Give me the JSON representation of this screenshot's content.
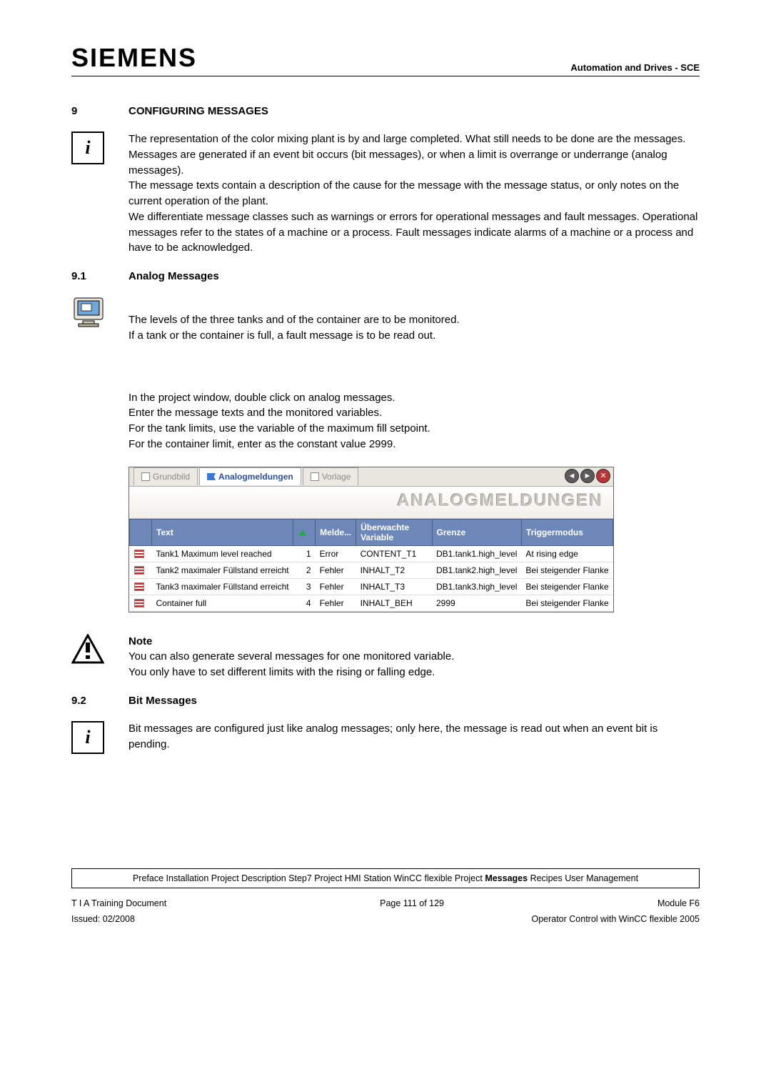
{
  "header": {
    "logo": "SIEMENS",
    "right": "Automation and Drives - SCE"
  },
  "sec9": {
    "num": "9",
    "title": "CONFIGURING MESSAGES",
    "para": "The representation of the color mixing plant is by and large completed. What still needs to be done are the messages. Messages are generated if an event bit occurs (bit messages), or when a limit is overrange or underrange (analog messages).\nThe message texts contain a description of the cause for the message with the message status, or only notes on the current operation of the plant.\nWe differentiate message classes such as warnings or errors for operational messages and  fault messages. Operational messages refer to the states of a machine or a process.  Fault messages indicate alarms of a machine or a process and have to be acknowledged."
  },
  "sec91": {
    "num": "9.1",
    "title": "Analog Messages",
    "para1": "The levels of the three tanks and of the container are to be monitored.\nIf a tank or the container is full, a fault message is to be read out.",
    "para2": "In the project window, double click on analog messages.\nEnter the message texts and the monitored variables.\nFor the tank limits, use the variable of the maximum fill setpoint.\nFor the container limit, enter as the constant value  2999."
  },
  "window": {
    "tabs": {
      "grundbild": "Grundbild",
      "analog": "Analogmeldungen",
      "vorlage": "Vorlage"
    },
    "banner": "ANALOGMELDUNGEN",
    "columns": {
      "text": "Text",
      "num": "",
      "melde": "Melde...",
      "var": "Überwachte Variable",
      "grenze": "Grenze",
      "trigger": "Triggermodus"
    },
    "rows": [
      {
        "text": "Tank1 Maximum level reached",
        "n": "1",
        "melde": "Error",
        "var": "CONTENT_T1",
        "grenze": "DB1.tank1.high_level",
        "trigger": "At rising edge"
      },
      {
        "text": "Tank2 maximaler Füllstand erreicht",
        "n": "2",
        "melde": "Fehler",
        "var": "INHALT_T2",
        "grenze": "DB1.tank2.high_level",
        "trigger": "Bei steigender Flanke"
      },
      {
        "text": "Tank3 maximaler Füllstand erreicht",
        "n": "3",
        "melde": "Fehler",
        "var": "INHALT_T3",
        "grenze": "DB1.tank3.high_level",
        "trigger": "Bei steigender Flanke"
      },
      {
        "text": "Container full",
        "n": "4",
        "melde": "Fehler",
        "var": "INHALT_BEH",
        "grenze": "2999",
        "trigger": "Bei steigender Flanke"
      }
    ]
  },
  "note": {
    "title": "Note",
    "body": "You can also generate several messages for one monitored variable.\nYou only have to set different limits with the rising or falling edge."
  },
  "sec92": {
    "num": "9.2",
    "title": "Bit Messages",
    "para": "Bit messages are configured just like analog messages; only here, the message is read out when an event bit is pending."
  },
  "breadcrumb": {
    "items": [
      "Preface",
      "Installation",
      "Project Description",
      "Step7 Project",
      "HMI Station",
      "WinCC flexible Project",
      "Messages",
      "Recipes",
      "User Management"
    ],
    "bold_index": 6
  },
  "footer": {
    "left1": "T I A  Training Document",
    "center1": "Page 111 of 129",
    "right1": "Module F6",
    "left2": "Issued: 02/2008",
    "right2": "Operator Control with WinCC flexible 2005"
  }
}
